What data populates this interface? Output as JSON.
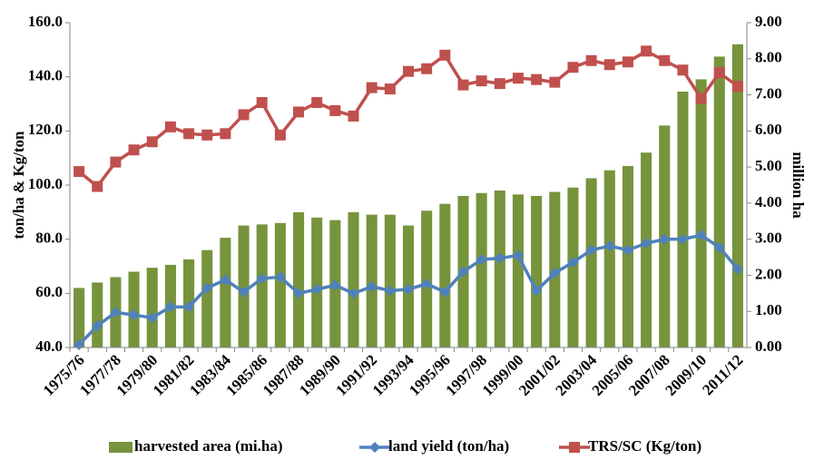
{
  "chart_data": {
    "type": "bar",
    "categories": [
      "1975/76",
      null,
      "1977/78",
      null,
      "1979/80",
      null,
      "1981/82",
      null,
      "1983/84",
      null,
      "1985/86",
      null,
      "1987/88",
      null,
      "1989/90",
      null,
      "1991/92",
      null,
      "1993/94",
      null,
      "1995/96",
      null,
      "1997/98",
      null,
      "1999/00",
      null,
      "2001/02",
      null,
      "2003/04",
      null,
      "2005/06",
      null,
      "2007/08",
      null,
      "2009/10",
      null,
      "2011/12"
    ],
    "ylabel": "ton/ha & Kg/ton",
    "y2label": "million ha",
    "ylim": [
      40,
      160
    ],
    "yticks": [
      {
        "value": 40,
        "label": "40.0"
      },
      {
        "value": 60,
        "label": "60.0"
      },
      {
        "value": 80,
        "label": "80.0"
      },
      {
        "value": 100,
        "label": "100.0"
      },
      {
        "value": 120,
        "label": "120.0"
      },
      {
        "value": 140,
        "label": "140.0"
      },
      {
        "value": 160,
        "label": "160.0"
      }
    ],
    "y2lim": [
      0,
      9
    ],
    "y2ticks": [
      {
        "value": 0,
        "label": "0.00"
      },
      {
        "value": 1,
        "label": "1.00"
      },
      {
        "value": 2,
        "label": "2.00"
      },
      {
        "value": 3,
        "label": "3.00"
      },
      {
        "value": 4,
        "label": "4.00"
      },
      {
        "value": 5,
        "label": "5.00"
      },
      {
        "value": 6,
        "label": "6.00"
      },
      {
        "value": 7,
        "label": "7.00"
      },
      {
        "value": 8,
        "label": "8.00"
      },
      {
        "value": 9,
        "label": "9.00"
      }
    ],
    "legend": "bottom",
    "series": [
      {
        "name": "harvested area (mi.ha)",
        "type": "bar",
        "axis": "y2",
        "color": "#77933c",
        "values": [
          1.65,
          1.8,
          1.95,
          2.1,
          2.21,
          2.29,
          2.44,
          2.7,
          3.04,
          3.38,
          3.41,
          3.45,
          3.75,
          3.6,
          3.53,
          3.75,
          3.68,
          3.68,
          3.38,
          3.79,
          3.98,
          4.2,
          4.28,
          4.35,
          4.24,
          4.2,
          4.31,
          4.43,
          4.69,
          4.91,
          5.03,
          5.4,
          6.15,
          7.09,
          7.43,
          8.06,
          8.4
        ]
      },
      {
        "name": "land yield (ton/ha)",
        "type": "line",
        "marker": "diamond",
        "color": "#4f81bd",
        "values": [
          41,
          48,
          53,
          52,
          51,
          55,
          55,
          62,
          65,
          60.5,
          65.5,
          66,
          60,
          61.5,
          63,
          60,
          62.5,
          61,
          61.5,
          63.5,
          60.5,
          68,
          72.5,
          73,
          74,
          61,
          67.5,
          71.5,
          76,
          77.5,
          76,
          78.5,
          80,
          80,
          81.5,
          77,
          69
        ]
      },
      {
        "name": "TRS/SC (Kg/ton)",
        "type": "line",
        "marker": "square",
        "color": "#c0504d",
        "values": [
          105,
          99.5,
          108.5,
          113,
          116,
          121.5,
          119,
          118.5,
          119,
          126,
          130.5,
          118.5,
          127,
          130.5,
          127.5,
          125.5,
          136,
          135.5,
          142,
          143,
          148,
          137,
          138.5,
          137.5,
          139.5,
          139,
          138,
          143.5,
          146,
          144.5,
          145.5,
          149.5,
          146,
          142.5,
          132,
          141.5,
          136.5
        ]
      }
    ]
  }
}
